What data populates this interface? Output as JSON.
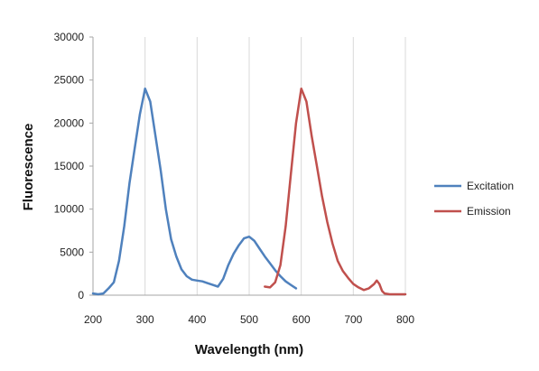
{
  "chart_data": {
    "type": "line",
    "title": "",
    "xlabel": "Wavelength (nm)",
    "ylabel": "Fluorescence",
    "xlim": [
      200,
      800
    ],
    "ylim": [
      0,
      30000
    ],
    "x_ticks": [
      200,
      300,
      400,
      500,
      600,
      700,
      800
    ],
    "y_ticks": [
      0,
      5000,
      10000,
      15000,
      20000,
      25000,
      30000
    ],
    "grid": "vertical",
    "legend_position": "right",
    "series": [
      {
        "name": "Excitation",
        "color": "#4f81bd",
        "points": [
          [
            200,
            200
          ],
          [
            210,
            100
          ],
          [
            220,
            200
          ],
          [
            230,
            800
          ],
          [
            240,
            1500
          ],
          [
            250,
            4000
          ],
          [
            260,
            8000
          ],
          [
            270,
            13000
          ],
          [
            280,
            17000
          ],
          [
            290,
            21000
          ],
          [
            300,
            24000
          ],
          [
            310,
            22500
          ],
          [
            320,
            18500
          ],
          [
            330,
            14500
          ],
          [
            340,
            10000
          ],
          [
            350,
            6500
          ],
          [
            360,
            4500
          ],
          [
            370,
            3000
          ],
          [
            380,
            2200
          ],
          [
            390,
            1800
          ],
          [
            400,
            1700
          ],
          [
            410,
            1600
          ],
          [
            420,
            1400
          ],
          [
            430,
            1200
          ],
          [
            440,
            1000
          ],
          [
            450,
            1900
          ],
          [
            460,
            3500
          ],
          [
            470,
            4800
          ],
          [
            480,
            5800
          ],
          [
            490,
            6600
          ],
          [
            500,
            6800
          ],
          [
            510,
            6300
          ],
          [
            520,
            5400
          ],
          [
            530,
            4500
          ],
          [
            540,
            3700
          ],
          [
            550,
            2900
          ],
          [
            560,
            2200
          ],
          [
            570,
            1600
          ],
          [
            580,
            1200
          ],
          [
            590,
            800
          ]
        ]
      },
      {
        "name": "Emission",
        "color": "#c0504d",
        "points": [
          [
            530,
            1000
          ],
          [
            540,
            900
          ],
          [
            550,
            1500
          ],
          [
            560,
            3500
          ],
          [
            570,
            8000
          ],
          [
            580,
            14000
          ],
          [
            590,
            20000
          ],
          [
            600,
            24000
          ],
          [
            610,
            22500
          ],
          [
            620,
            18500
          ],
          [
            630,
            15000
          ],
          [
            640,
            11500
          ],
          [
            650,
            8500
          ],
          [
            660,
            6000
          ],
          [
            670,
            4000
          ],
          [
            680,
            2800
          ],
          [
            690,
            2000
          ],
          [
            700,
            1300
          ],
          [
            710,
            900
          ],
          [
            720,
            600
          ],
          [
            730,
            800
          ],
          [
            740,
            1300
          ],
          [
            745,
            1700
          ],
          [
            750,
            1300
          ],
          [
            755,
            500
          ],
          [
            760,
            200
          ],
          [
            770,
            100
          ],
          [
            780,
            100
          ],
          [
            790,
            100
          ],
          [
            800,
            100
          ]
        ]
      }
    ]
  }
}
